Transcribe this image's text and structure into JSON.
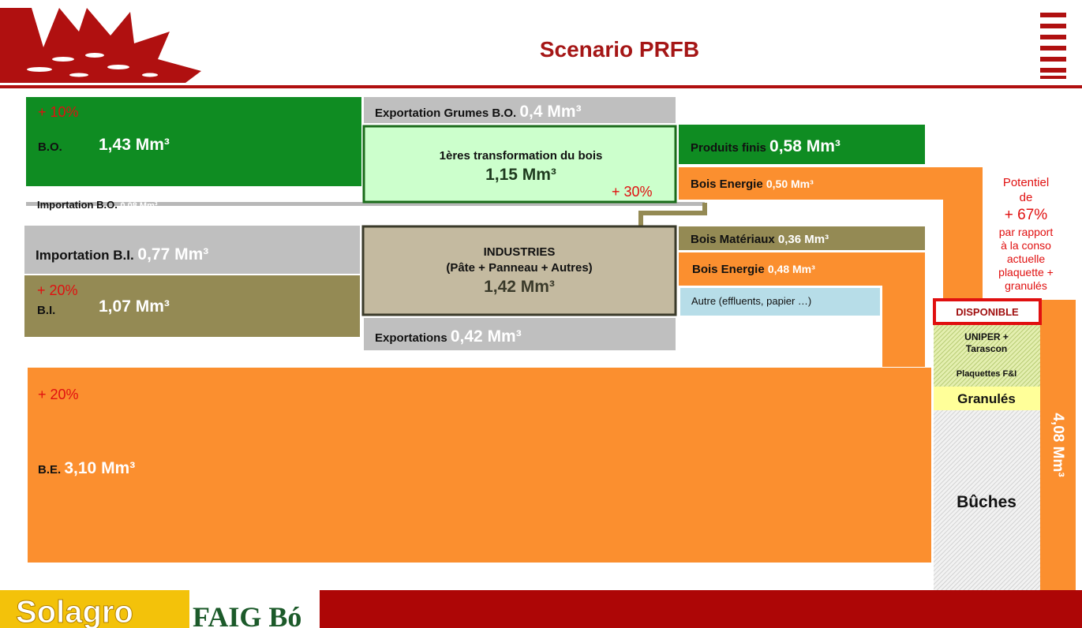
{
  "header": {
    "title": "Scenario PRFB"
  },
  "sources": {
    "bo": {
      "growth": "+ 10%",
      "label": "B.O.",
      "volume": "1,43 Mm³"
    },
    "import_bo": {
      "label": "Importation B.O.",
      "volume": "0,08 Mm³"
    },
    "import_bi": {
      "label": "Importation B.I.",
      "volume": "0,77 Mm³"
    },
    "bi": {
      "growth": "+ 20%",
      "label": "B.I.",
      "volume": "1,07 Mm³"
    },
    "be": {
      "growth": "+ 20%",
      "label": "B.E.",
      "volume": "3,10 Mm³"
    }
  },
  "transformation": {
    "export_grumes": {
      "label": "Exportation Grumes B.O.",
      "volume": "0,4 Mm³"
    },
    "first": {
      "label": "1ères transformation du bois",
      "volume": "1,15 Mm³",
      "growth": "+ 30%"
    },
    "industries": {
      "label": "INDUSTRIES",
      "detail": "(Pâte + Panneau + Autres)",
      "volume": "1,42 Mm³"
    },
    "exportations": {
      "label": "Exportations",
      "volume": "0,42 Mm³"
    }
  },
  "outputs": [
    {
      "label": "Produits finis",
      "volume": "0,58 Mm³"
    },
    {
      "label": "Bois Energie",
      "volume": "0,50 Mm³"
    },
    {
      "label": "Bois Matériaux",
      "volume": "0,36 Mm³"
    },
    {
      "label": "Bois Energie",
      "volume": "0,48 Mm³"
    },
    {
      "label": "Autre (effluents, papier …)"
    }
  ],
  "potential": {
    "lines": [
      "Potentiel",
      "de",
      "+ 67%",
      "par rapport",
      "à la conso",
      "actuelle",
      "plaquette +",
      "granulés"
    ]
  },
  "uses": {
    "disponible": "DISPONIBLE",
    "uniper": [
      "UNIPER +",
      "Tarascon"
    ],
    "plaquettes": "Plaquettes F&I",
    "granules": "Granulés",
    "buches": "Bûches",
    "total": "4,08 Mm³"
  },
  "footer": {
    "logo1": "Solagro",
    "logo2": "FAIG Bó"
  }
}
